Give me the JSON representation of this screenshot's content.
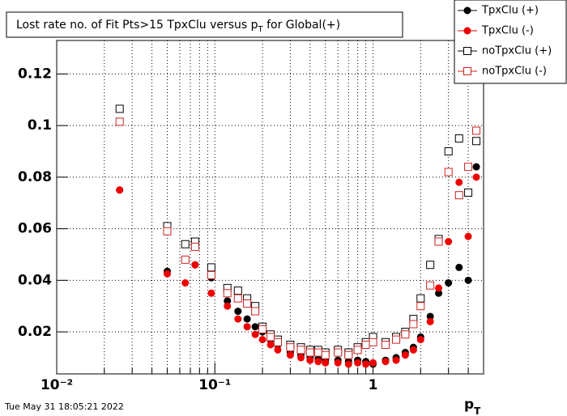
{
  "chart_data": {
    "type": "scatter",
    "title_parts": [
      "Lost rate no. of Fit Pts>15 TpxClu versus p",
      "T",
      " for Global(+)"
    ],
    "x_label_parts": [
      "p",
      "T"
    ],
    "timestamp": "Tue May 31 18:05:21 2022",
    "log_x": true,
    "grid": true,
    "legend_position": "top-right",
    "xlim": [
      0.01,
      5
    ],
    "ylim": [
      0.0037,
      0.133
    ],
    "xticks": [
      {
        "value": 0.01,
        "label": "10⁻²"
      },
      {
        "value": 0.1,
        "label": "10⁻¹"
      },
      1
    ],
    "xminorticks": [
      0.02,
      0.03,
      0.04,
      0.05,
      0.06,
      0.07,
      0.08,
      0.09,
      0.2,
      0.3,
      0.4,
      0.5,
      0.6,
      0.7,
      0.8,
      0.9,
      2,
      3,
      4
    ],
    "yticks": [
      0.02,
      0.04,
      0.06,
      0.08,
      0.1,
      0.12
    ],
    "x": [
      0.025,
      0.05,
      0.065,
      0.075,
      0.095,
      0.12,
      0.14,
      0.16,
      0.18,
      0.2,
      0.225,
      0.25,
      0.3,
      0.35,
      0.4,
      0.45,
      0.5,
      0.6,
      0.7,
      0.8,
      0.9,
      1.0,
      1.2,
      1.4,
      1.6,
      1.8,
      2.0,
      2.3,
      2.6,
      3.0,
      3.5,
      4.0,
      4.5
    ],
    "series": [
      {
        "name": "TpxClu (+)",
        "color": "#000000",
        "marker": "filled-circle",
        "values": [
          0.075,
          0.0435,
          0.048,
          0.046,
          0.041,
          0.032,
          0.028,
          0.025,
          0.022,
          0.02,
          0.017,
          0.015,
          0.012,
          0.011,
          0.01,
          0.0095,
          0.009,
          0.009,
          0.0085,
          0.009,
          0.0085,
          0.0075,
          0.009,
          0.01,
          0.012,
          0.014,
          0.018,
          0.026,
          0.035,
          0.039,
          0.045,
          0.04,
          0.084
        ]
      },
      {
        "name": "TpxClu (-)",
        "color": "#ee0000",
        "marker": "filled-circle",
        "values": [
          0.075,
          0.0425,
          0.039,
          0.046,
          0.035,
          0.03,
          0.025,
          0.022,
          0.019,
          0.017,
          0.015,
          0.013,
          0.011,
          0.01,
          0.009,
          0.0085,
          0.008,
          0.008,
          0.0075,
          0.008,
          0.0075,
          0.008,
          0.0085,
          0.009,
          0.011,
          0.013,
          0.017,
          0.024,
          0.037,
          0.055,
          0.078,
          0.057,
          0.08
        ]
      },
      {
        "name": "noTpxClu (+)",
        "color": "#000000",
        "marker": "open-square",
        "values": [
          0.1065,
          0.061,
          0.054,
          0.055,
          0.045,
          0.037,
          0.036,
          0.033,
          0.03,
          0.022,
          0.019,
          0.017,
          0.015,
          0.014,
          0.013,
          0.013,
          0.012,
          0.013,
          0.012,
          0.014,
          0.016,
          0.018,
          0.016,
          0.018,
          0.02,
          0.025,
          0.033,
          0.046,
          0.056,
          0.09,
          0.095,
          0.074,
          0.094
        ]
      },
      {
        "name": "noTpxClu (-)",
        "color": "#cc2222",
        "marker": "open-square",
        "values": [
          0.1015,
          0.059,
          0.048,
          0.053,
          0.042,
          0.035,
          0.033,
          0.031,
          0.028,
          0.021,
          0.018,
          0.016,
          0.014,
          0.013,
          0.012,
          0.012,
          0.011,
          0.012,
          0.011,
          0.013,
          0.015,
          0.016,
          0.015,
          0.017,
          0.019,
          0.023,
          0.03,
          0.038,
          0.055,
          0.082,
          0.073,
          0.084,
          0.098
        ]
      }
    ]
  }
}
